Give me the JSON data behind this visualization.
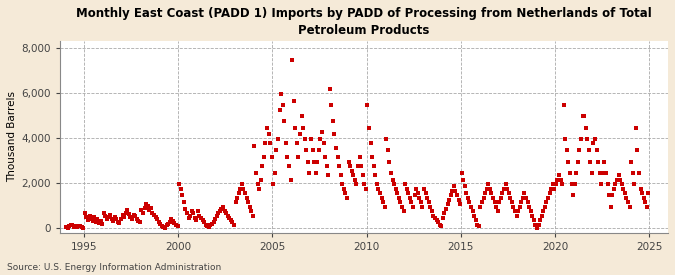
{
  "title": "Monthly East Coast (PADD 1) Imports by PADD of Processing from Netherlands of Total\nPetroleum Products",
  "ylabel": "Thousand Barrels",
  "source": "Source: U.S. Energy Information Administration",
  "fig_background_color": "#f5ead8",
  "plot_background_color": "#ffffff",
  "dot_color": "#cc0000",
  "dot_size": 5,
  "xlim": [
    1993.7,
    2026.0
  ],
  "ylim": [
    -200,
    8300
  ],
  "yticks": [
    0,
    2000,
    4000,
    6000,
    8000
  ],
  "ytick_labels": [
    "0",
    "2,000",
    "4,000",
    "6,000",
    "8,000"
  ],
  "xticks": [
    1995,
    2000,
    2005,
    2010,
    2015,
    2020,
    2025
  ],
  "data": {
    "1994-01": 50,
    "1994-02": 0,
    "1994-03": 80,
    "1994-04": 150,
    "1994-05": 120,
    "1994-06": 60,
    "1994-07": 100,
    "1994-08": 40,
    "1994-09": 70,
    "1994-10": 90,
    "1994-11": 50,
    "1994-12": 20,
    "1995-01": 650,
    "1995-02": 500,
    "1995-03": 350,
    "1995-04": 550,
    "1995-05": 420,
    "1995-06": 300,
    "1995-07": 480,
    "1995-08": 250,
    "1995-09": 380,
    "1995-10": 220,
    "1995-11": 320,
    "1995-12": 180,
    "1996-01": 680,
    "1996-02": 520,
    "1996-03": 380,
    "1996-04": 480,
    "1996-05": 580,
    "1996-06": 420,
    "1996-07": 320,
    "1996-08": 480,
    "1996-09": 380,
    "1996-10": 280,
    "1996-11": 220,
    "1996-12": 380,
    "1997-01": 580,
    "1997-02": 480,
    "1997-03": 680,
    "1997-04": 780,
    "1997-05": 620,
    "1997-06": 480,
    "1997-07": 380,
    "1997-08": 580,
    "1997-09": 520,
    "1997-10": 420,
    "1997-11": 320,
    "1997-12": 280,
    "1998-01": 780,
    "1998-02": 680,
    "1998-03": 880,
    "1998-04": 1080,
    "1998-05": 980,
    "1998-06": 780,
    "1998-07": 880,
    "1998-08": 680,
    "1998-09": 580,
    "1998-10": 480,
    "1998-11": 380,
    "1998-12": 280,
    "1999-01": 180,
    "1999-02": 80,
    "1999-03": 30,
    "1999-04": 0,
    "1999-05": 120,
    "1999-06": 180,
    "1999-07": 280,
    "1999-08": 380,
    "1999-09": 320,
    "1999-10": 220,
    "1999-11": 120,
    "1999-12": 80,
    "2000-01": 1950,
    "2000-02": 1750,
    "2000-03": 1450,
    "2000-04": 1150,
    "2000-05": 850,
    "2000-06": 650,
    "2000-07": 450,
    "2000-08": 550,
    "2000-09": 750,
    "2000-10": 650,
    "2000-11": 450,
    "2000-12": 350,
    "2001-01": 750,
    "2001-02": 550,
    "2001-03": 450,
    "2001-04": 350,
    "2001-05": 250,
    "2001-06": 150,
    "2001-07": 80,
    "2001-08": 30,
    "2001-09": 120,
    "2001-10": 180,
    "2001-11": 280,
    "2001-12": 380,
    "2002-01": 550,
    "2002-02": 650,
    "2002-03": 750,
    "2002-04": 850,
    "2002-05": 950,
    "2002-06": 750,
    "2002-07": 650,
    "2002-08": 550,
    "2002-09": 450,
    "2002-10": 350,
    "2002-11": 250,
    "2002-12": 150,
    "2003-01": 1150,
    "2003-02": 1350,
    "2003-03": 1550,
    "2003-04": 1750,
    "2003-05": 1950,
    "2003-06": 1750,
    "2003-07": 1550,
    "2003-08": 1350,
    "2003-09": 1150,
    "2003-10": 950,
    "2003-11": 750,
    "2003-12": 550,
    "2004-01": 3650,
    "2004-02": 2450,
    "2004-03": 1950,
    "2004-04": 1750,
    "2004-05": 2150,
    "2004-06": 2750,
    "2004-07": 3150,
    "2004-08": 3750,
    "2004-09": 4450,
    "2004-10": 4150,
    "2004-11": 3750,
    "2004-12": 3150,
    "2005-01": 1950,
    "2005-02": 2450,
    "2005-03": 3450,
    "2005-04": 3950,
    "2005-05": 5250,
    "2005-06": 5950,
    "2005-07": 5450,
    "2005-08": 4750,
    "2005-09": 3750,
    "2005-10": 3150,
    "2005-11": 2750,
    "2005-12": 2150,
    "2006-01": 7450,
    "2006-02": 5650,
    "2006-03": 4450,
    "2006-04": 3750,
    "2006-05": 3150,
    "2006-06": 4150,
    "2006-07": 4950,
    "2006-08": 4450,
    "2006-09": 3950,
    "2006-10": 3450,
    "2006-11": 2950,
    "2006-12": 2450,
    "2007-01": 3950,
    "2007-02": 3450,
    "2007-03": 2950,
    "2007-04": 2450,
    "2007-05": 2950,
    "2007-06": 3450,
    "2007-07": 3950,
    "2007-08": 4250,
    "2007-09": 3750,
    "2007-10": 3150,
    "2007-11": 2750,
    "2007-12": 2350,
    "2008-01": 6150,
    "2008-02": 5450,
    "2008-03": 4750,
    "2008-04": 4150,
    "2008-05": 3550,
    "2008-06": 3150,
    "2008-07": 2750,
    "2008-08": 2350,
    "2008-09": 1950,
    "2008-10": 1750,
    "2008-11": 1550,
    "2008-12": 1350,
    "2009-01": 2950,
    "2009-02": 2750,
    "2009-03": 2550,
    "2009-04": 2350,
    "2009-05": 2150,
    "2009-06": 1950,
    "2009-07": 2750,
    "2009-08": 3150,
    "2009-09": 2750,
    "2009-10": 2350,
    "2009-11": 1950,
    "2009-12": 1750,
    "2010-01": 5450,
    "2010-02": 4450,
    "2010-03": 3750,
    "2010-04": 3150,
    "2010-05": 2750,
    "2010-06": 2350,
    "2010-07": 1950,
    "2010-08": 1750,
    "2010-09": 1550,
    "2010-10": 1350,
    "2010-11": 1150,
    "2010-12": 950,
    "2011-01": 3950,
    "2011-02": 3450,
    "2011-03": 2950,
    "2011-04": 2450,
    "2011-05": 2150,
    "2011-06": 1950,
    "2011-07": 1750,
    "2011-08": 1550,
    "2011-09": 1350,
    "2011-10": 1150,
    "2011-11": 950,
    "2011-12": 750,
    "2012-01": 1950,
    "2012-02": 1750,
    "2012-03": 1550,
    "2012-04": 1350,
    "2012-05": 1150,
    "2012-06": 950,
    "2012-07": 1450,
    "2012-08": 1750,
    "2012-09": 1550,
    "2012-10": 1350,
    "2012-11": 1150,
    "2012-12": 950,
    "2013-01": 1750,
    "2013-02": 1550,
    "2013-03": 1350,
    "2013-04": 1150,
    "2013-05": 950,
    "2013-06": 750,
    "2013-07": 550,
    "2013-08": 450,
    "2013-09": 350,
    "2013-10": 250,
    "2013-11": 150,
    "2013-12": 80,
    "2014-01": 450,
    "2014-02": 650,
    "2014-03": 850,
    "2014-04": 1050,
    "2014-05": 1250,
    "2014-06": 1450,
    "2014-07": 1650,
    "2014-08": 1850,
    "2014-09": 1650,
    "2014-10": 1450,
    "2014-11": 1250,
    "2014-12": 1050,
    "2015-01": 2450,
    "2015-02": 2150,
    "2015-03": 1850,
    "2015-04": 1550,
    "2015-05": 1350,
    "2015-06": 1150,
    "2015-07": 950,
    "2015-08": 750,
    "2015-09": 550,
    "2015-10": 350,
    "2015-11": 150,
    "2015-12": 80,
    "2016-01": 950,
    "2016-02": 1150,
    "2016-03": 1350,
    "2016-04": 1550,
    "2016-05": 1750,
    "2016-06": 1950,
    "2016-07": 1750,
    "2016-08": 1550,
    "2016-09": 1350,
    "2016-10": 1150,
    "2016-11": 950,
    "2016-12": 750,
    "2017-01": 1150,
    "2017-02": 1350,
    "2017-03": 1550,
    "2017-04": 1750,
    "2017-05": 1950,
    "2017-06": 1750,
    "2017-07": 1550,
    "2017-08": 1350,
    "2017-09": 1150,
    "2017-10": 950,
    "2017-11": 750,
    "2017-12": 550,
    "2018-01": 750,
    "2018-02": 950,
    "2018-03": 1150,
    "2018-04": 1350,
    "2018-05": 1550,
    "2018-06": 1350,
    "2018-07": 1150,
    "2018-08": 950,
    "2018-09": 750,
    "2018-10": 550,
    "2018-11": 350,
    "2018-12": 150,
    "2019-01": 0,
    "2019-02": 150,
    "2019-03": 350,
    "2019-04": 550,
    "2019-05": 750,
    "2019-06": 950,
    "2019-07": 1150,
    "2019-08": 1350,
    "2019-09": 1550,
    "2019-10": 1750,
    "2019-11": 1950,
    "2019-12": 1750,
    "2020-01": 1950,
    "2020-02": 2150,
    "2020-03": 2350,
    "2020-04": 2150,
    "2020-05": 1950,
    "2020-06": 5450,
    "2020-07": 3950,
    "2020-08": 3450,
    "2020-09": 2950,
    "2020-10": 2450,
    "2020-11": 1950,
    "2020-12": 1450,
    "2021-01": 1950,
    "2021-02": 2450,
    "2021-03": 2950,
    "2021-04": 3450,
    "2021-05": 3950,
    "2021-06": 4950,
    "2021-07": 4950,
    "2021-08": 4450,
    "2021-09": 3950,
    "2021-10": 3450,
    "2021-11": 2950,
    "2021-12": 2450,
    "2022-01": 3750,
    "2022-02": 3950,
    "2022-03": 3450,
    "2022-04": 2950,
    "2022-05": 2450,
    "2022-06": 1950,
    "2022-07": 2450,
    "2022-08": 2950,
    "2022-09": 2450,
    "2022-10": 1950,
    "2022-11": 1450,
    "2022-12": 950,
    "2023-01": 1450,
    "2023-02": 1750,
    "2023-03": 1950,
    "2023-04": 2150,
    "2023-05": 2350,
    "2023-06": 2150,
    "2023-07": 1950,
    "2023-08": 1750,
    "2023-09": 1550,
    "2023-10": 1350,
    "2023-11": 1150,
    "2023-12": 950,
    "2024-01": 2950,
    "2024-02": 2450,
    "2024-03": 1950,
    "2024-04": 4450,
    "2024-05": 3450,
    "2024-06": 2450,
    "2024-07": 1750,
    "2024-08": 1550,
    "2024-09": 1350,
    "2024-10": 1150,
    "2024-11": 950,
    "2024-12": 1550
  }
}
